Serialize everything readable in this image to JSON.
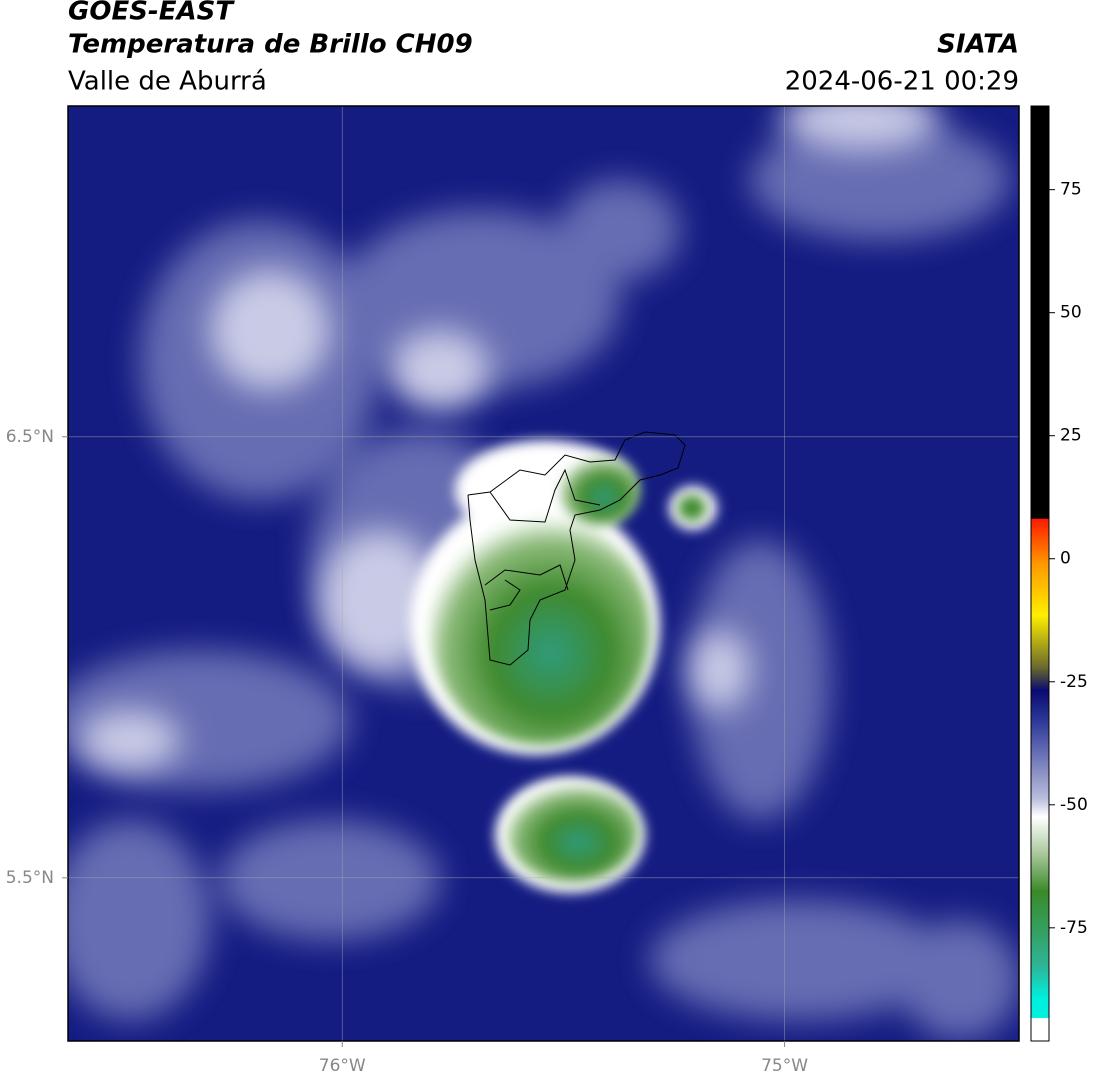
{
  "header": {
    "title": "GOES-EAST",
    "subtitle": "Temperatura de Brillo CH09",
    "region": "Valle de Aburrá",
    "source": "SIATA",
    "datetime": "2024-06-21 00:29"
  },
  "map": {
    "lon_range": [
      -76.62,
      -74.47
    ],
    "lat_range": [
      5.13,
      7.25
    ],
    "lon_ticks": [
      {
        "value": -76,
        "label": "76°W"
      },
      {
        "value": -75,
        "label": "75°W"
      }
    ],
    "lat_ticks": [
      {
        "value": 6.5,
        "label": "6.5°N"
      },
      {
        "value": 5.5,
        "label": "5.5°N"
      }
    ]
  },
  "colorbar": {
    "lim": [
      -98,
      92
    ],
    "ticks": [
      75,
      50,
      25,
      0,
      -25,
      -50,
      -75
    ]
  }
}
